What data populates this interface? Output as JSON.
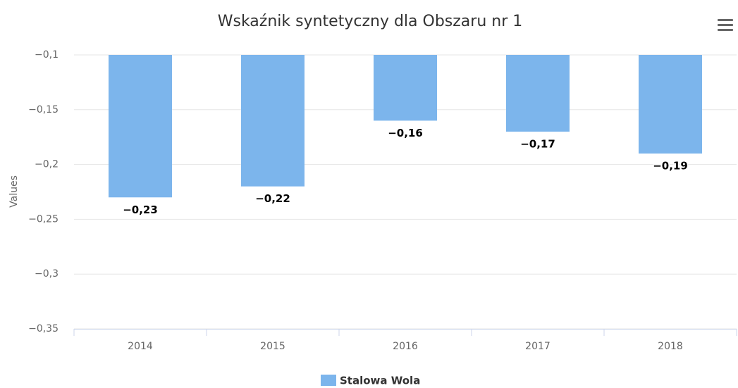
{
  "chart_data": {
    "type": "bar",
    "title": "Wskaźnik syntetyczny dla Obszaru nr 1",
    "y_axis_label": "Values",
    "categories": [
      "2014",
      "2015",
      "2016",
      "2017",
      "2018"
    ],
    "series": [
      {
        "name": "Stalowa Wola",
        "color": "#7cb5ec",
        "values": [
          -0.23,
          -0.22,
          -0.16,
          -0.17,
          -0.19
        ],
        "value_labels": [
          "−0,23",
          "−0,22",
          "−0,16",
          "−0,17",
          "−0,19"
        ]
      }
    ],
    "ylim": [
      -0.35,
      -0.1
    ],
    "yticks": [
      {
        "value": -0.35,
        "label": "−0,35"
      },
      {
        "value": -0.3,
        "label": "−0,3"
      },
      {
        "value": -0.25,
        "label": "−0,25"
      },
      {
        "value": -0.2,
        "label": "−0,2"
      },
      {
        "value": -0.15,
        "label": "−0,15"
      },
      {
        "value": -0.1,
        "label": "−0,1"
      }
    ],
    "grid": true,
    "legend": "bottom"
  }
}
